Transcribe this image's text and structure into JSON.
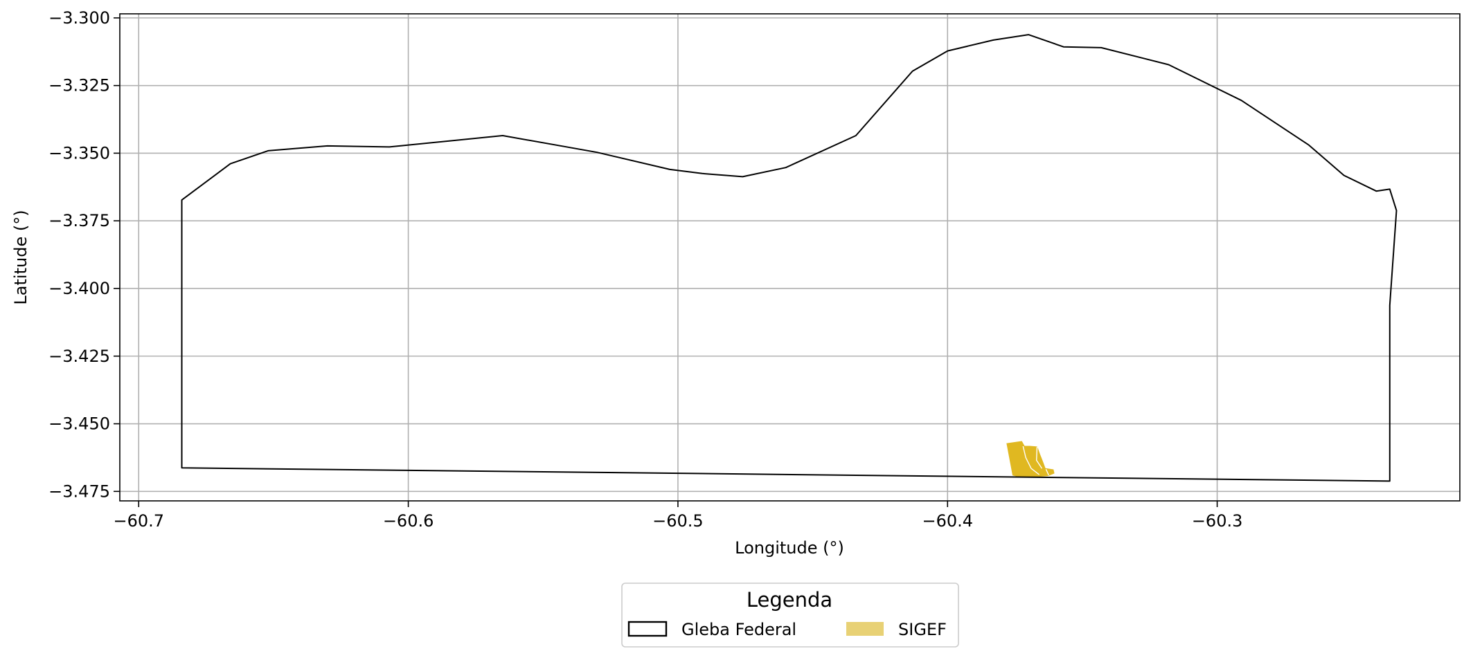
{
  "map": {
    "xlabel": "Longitude (°)",
    "ylabel": "Latitude (°)",
    "xlim": [
      -60.707,
      -60.21
    ],
    "ylim": [
      -3.4785,
      -3.2985
    ],
    "grid": true,
    "x_ticks": [
      {
        "value": -60.7,
        "label": "−60.7"
      },
      {
        "value": -60.6,
        "label": "−60.6"
      },
      {
        "value": -60.5,
        "label": "−60.5"
      },
      {
        "value": -60.4,
        "label": "−60.4"
      },
      {
        "value": -60.3,
        "label": "−60.3"
      }
    ],
    "y_ticks": [
      {
        "value": -3.3,
        "label": "−3.300"
      },
      {
        "value": -3.325,
        "label": "−3.325"
      },
      {
        "value": -3.35,
        "label": "−3.350"
      },
      {
        "value": -3.375,
        "label": "−3.375"
      },
      {
        "value": -3.4,
        "label": "−3.400"
      },
      {
        "value": -3.425,
        "label": "−3.425"
      },
      {
        "value": -3.45,
        "label": "−3.450"
      },
      {
        "value": -3.475,
        "label": "−3.475"
      }
    ],
    "gleba_color": "#000000",
    "sigef_color": "#e0b821",
    "sigef_legend_color": "#e8d175",
    "gleba_boundary": [
      [
        -60.684,
        -3.3673
      ],
      [
        -60.666,
        -3.3539
      ],
      [
        -60.652,
        -3.3491
      ],
      [
        -60.63,
        -3.3473
      ],
      [
        -60.607,
        -3.3477
      ],
      [
        -60.565,
        -3.3435
      ],
      [
        -60.53,
        -3.3497
      ],
      [
        -60.503,
        -3.356
      ],
      [
        -60.491,
        -3.3575
      ],
      [
        -60.476,
        -3.3587
      ],
      [
        -60.46,
        -3.3553
      ],
      [
        -60.434,
        -3.3435
      ],
      [
        -60.413,
        -3.3197
      ],
      [
        -60.4,
        -3.3122
      ],
      [
        -60.383,
        -3.3082
      ],
      [
        -60.37,
        -3.3062
      ],
      [
        -60.357,
        -3.3107
      ],
      [
        -60.343,
        -3.311
      ],
      [
        -60.318,
        -3.3173
      ],
      [
        -60.291,
        -3.3305
      ],
      [
        -60.266,
        -3.347
      ],
      [
        -60.253,
        -3.3582
      ],
      [
        -60.241,
        -3.364
      ],
      [
        -60.236,
        -3.3633
      ],
      [
        -60.2335,
        -3.3712
      ],
      [
        -60.236,
        -3.4063
      ],
      [
        -60.236,
        -3.4712
      ],
      [
        -60.684,
        -3.4663
      ],
      [
        -60.684,
        -3.3673
      ]
    ],
    "sigef_parcels": [
      [
        [
          -60.378,
          -3.4573
        ],
        [
          -60.3725,
          -3.4565
        ],
        [
          -60.3715,
          -3.4583
        ],
        [
          -60.3695,
          -3.4583
        ],
        [
          -60.3668,
          -3.4585
        ],
        [
          -60.3658,
          -3.4613
        ],
        [
          -60.3648,
          -3.4638
        ],
        [
          -60.3638,
          -3.4665
        ],
        [
          -60.3608,
          -3.467
        ],
        [
          -60.3605,
          -3.4683
        ],
        [
          -60.3628,
          -3.4692
        ],
        [
          -60.3665,
          -3.4695
        ],
        [
          -60.3738,
          -3.4695
        ],
        [
          -60.3758,
          -3.469
        ]
      ]
    ],
    "sigef_internal_lines": [
      [
        [
          -60.372,
          -3.4583
        ],
        [
          -60.371,
          -3.4625
        ],
        [
          -60.369,
          -3.4665
        ],
        [
          -60.366,
          -3.4688
        ]
      ],
      [
        [
          -60.3668,
          -3.4585
        ],
        [
          -60.367,
          -3.4635
        ],
        [
          -60.365,
          -3.4665
        ]
      ],
      [
        [
          -60.3635,
          -3.4668
        ],
        [
          -60.3625,
          -3.469
        ]
      ]
    ]
  },
  "legend": {
    "title": "Legenda",
    "location": "below-center",
    "items": [
      {
        "label": "Gleba Federal",
        "style": "outline"
      },
      {
        "label": "SIGEF",
        "style": "fill"
      }
    ]
  }
}
